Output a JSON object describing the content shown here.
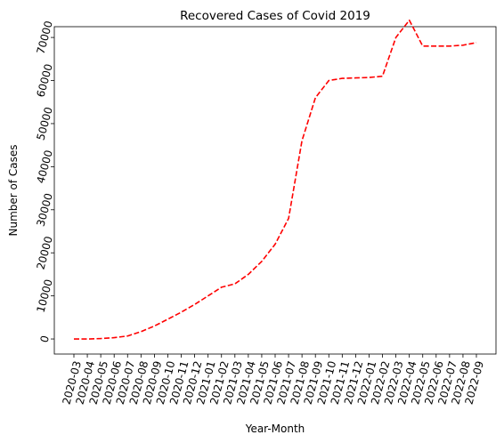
{
  "chart_data": {
    "type": "line",
    "title": "Recovered Cases of Covid 2019",
    "xlabel": "Year-Month",
    "ylabel": "Number of Cases",
    "categories": [
      "2020-03",
      "2020-04",
      "2020-05",
      "2020-06",
      "2020-07",
      "2020-08",
      "2020-09",
      "2020-10",
      "2020-11",
      "2020-12",
      "2021-01",
      "2021-02",
      "2021-03",
      "2021-04",
      "2021-05",
      "2021-06",
      "2021-07",
      "2021-08",
      "2021-09",
      "2021-10",
      "2021-11",
      "2021-12",
      "2022-01",
      "2022-02",
      "2022-03",
      "2022-04",
      "2022-05",
      "2022-06",
      "2022-07",
      "2022-08",
      "2022-09"
    ],
    "series": [
      {
        "values": [
          0,
          0,
          100,
          300,
          700,
          1700,
          3000,
          4600,
          6200,
          8000,
          10000,
          12000,
          12800,
          15000,
          18000,
          22000,
          28000,
          46000,
          56000,
          60000,
          60500,
          60600,
          60700,
          61000,
          70000,
          74000,
          68000,
          68000,
          68000,
          68200,
          68800
        ],
        "color": "#ff0000",
        "style": "dashed"
      }
    ],
    "yticks": [
      0,
      10000,
      20000,
      30000,
      40000,
      50000,
      60000,
      70000
    ],
    "ylim": [
      -3500,
      72500
    ],
    "grid": false
  }
}
